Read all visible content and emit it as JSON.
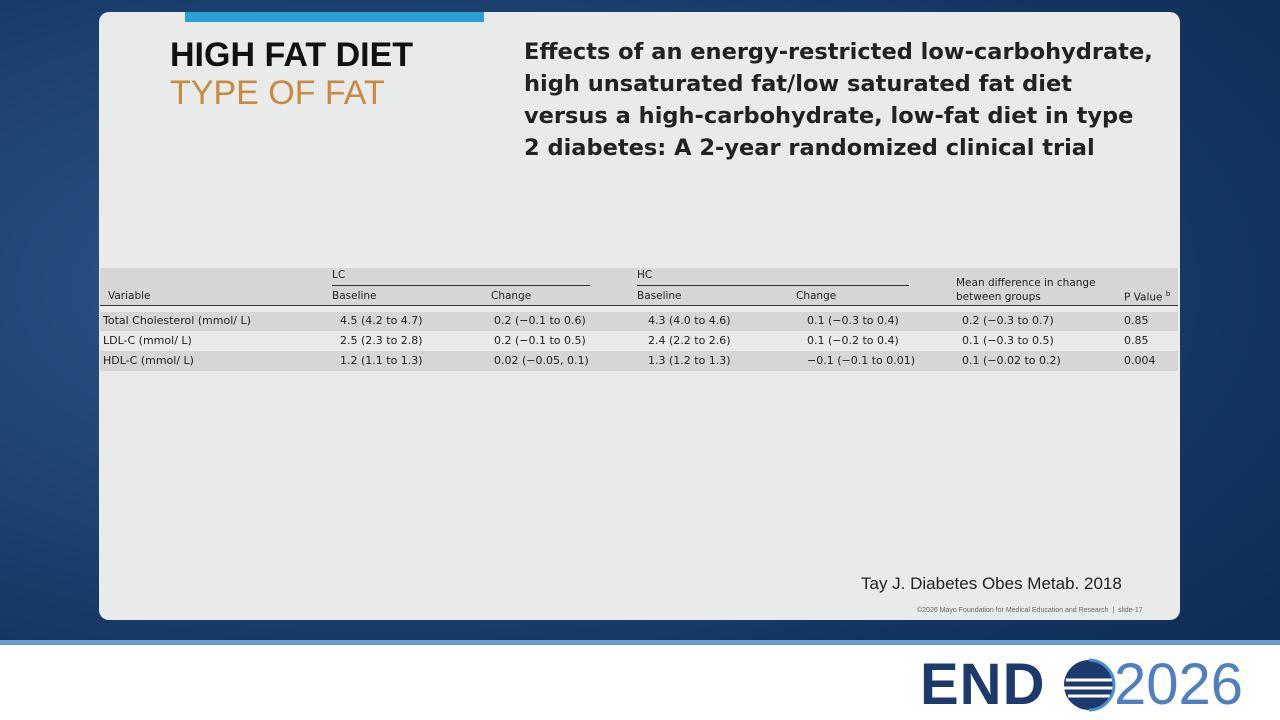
{
  "slide": {
    "title": "HIGH FAT DIET",
    "subtitle": "TYPE OF FAT",
    "paper_title": "Effects of an energy-restricted low-carbohydrate, high unsaturated fat/low saturated fat diet versus a high-carbohydrate, low-fat diet in type 2 diabetes: A 2-year randomized clinical trial",
    "citation": "Tay J. Diabetes Obes Metab. 2018",
    "footer": "©2026 Mayo Foundation for Medical Education and Research  |  slide-17"
  },
  "table": {
    "groups": [
      "LC",
      "HC",
      "Mean difference in change between groups"
    ],
    "columns": [
      "Variable",
      "Baseline",
      "Change",
      "Baseline",
      "Change",
      "P Value"
    ],
    "p_value_note": "b",
    "rows": [
      [
        "Total Cholesterol (mmol/ L)",
        "4.5 (4.2 to 4.7)",
        "0.2 (−0.1 to 0.6)",
        "4.3 (4.0 to 4.6)",
        "0.1 (−0.3 to 0.4)",
        "0.2 (−0.3 to 0.7)",
        "0.85"
      ],
      [
        "LDL-C (mmol/ L)",
        "2.5 (2.3 to 2.8)",
        "0.2 (−0.1 to 0.5)",
        "2.4 (2.2 to 2.6)",
        "0.1 (−0.2 to 0.4)",
        "0.1 (−0.3 to 0.5)",
        "0.85"
      ],
      [
        "HDL-C (mmol/ L)",
        "1.2 (1.1 to 1.3)",
        "0.02 (−0.05, 0.1)",
        "1.3 (1.2 to 1.3)",
        "−0.1 (−0.1 to 0.01)",
        "0.1 (−0.02 to 0.2)",
        "0.004"
      ]
    ]
  },
  "logo": {
    "left": "END",
    "right": "2026"
  }
}
